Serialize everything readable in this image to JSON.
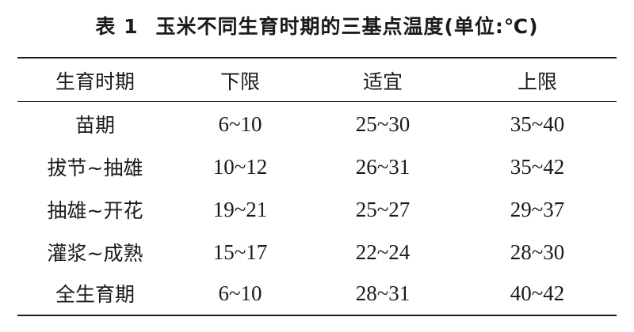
{
  "table": {
    "label": "表 1",
    "title": "玉米不同生育时期的三基点温度(单位:℃)",
    "headers": [
      "生育时期",
      "下限",
      "适宜",
      "上限"
    ],
    "rows": [
      [
        "苗期",
        "6~10",
        "25~30",
        "35~40"
      ],
      [
        "拔节~抽雄",
        "10~12",
        "26~31",
        "35~42"
      ],
      [
        "抽雄~开花",
        "19~21",
        "25~27",
        "29~37"
      ],
      [
        "灌浆~成熟",
        "15~17",
        "22~24",
        "28~30"
      ],
      [
        "全生育期",
        "6~10",
        "28~31",
        "40~42"
      ]
    ]
  }
}
